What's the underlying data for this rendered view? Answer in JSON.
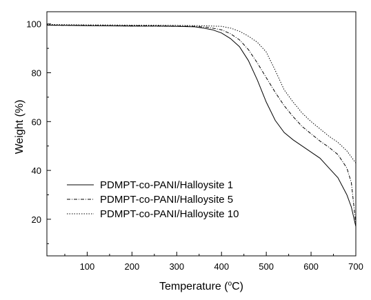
{
  "chart_data": {
    "type": "line",
    "title": "",
    "xlabel": "Temperature (",
    "xlabel_sup": "o",
    "xlabel_unit": "C)",
    "ylabel": "Weight (%)",
    "xlim": [
      10,
      700
    ],
    "ylim": [
      5,
      105
    ],
    "x_ticks": [
      100,
      200,
      300,
      400,
      500,
      600,
      700
    ],
    "x_tick_labels": [
      "100",
      "200",
      "300",
      "400",
      "500",
      "600",
      "700"
    ],
    "y_ticks": [
      20,
      40,
      60,
      80,
      100
    ],
    "y_tick_labels": [
      "20",
      "40",
      "60",
      "80",
      "100"
    ],
    "grid": false,
    "legend_position": "bottom-left",
    "series": [
      {
        "name": "PDMPT-co-PANI/Halloysite 1",
        "line_style": "solid",
        "x": [
          10,
          50,
          100,
          150,
          200,
          250,
          300,
          340,
          360,
          380,
          400,
          420,
          440,
          460,
          480,
          500,
          520,
          540,
          560,
          580,
          600,
          620,
          640,
          660,
          680,
          690,
          700
        ],
        "y": [
          99.5,
          99.4,
          99.3,
          99.2,
          99.1,
          99.1,
          99.0,
          98.8,
          98.3,
          97.6,
          96.3,
          94.0,
          90.7,
          85.0,
          77.0,
          68.0,
          60.5,
          55.5,
          52.5,
          50.0,
          47.5,
          45.0,
          41.0,
          37.0,
          30.0,
          25.0,
          17.0
        ]
      },
      {
        "name": "PDMPT-co-PANI/Halloysite 5",
        "line_style": "dash-dot",
        "x": [
          10,
          50,
          100,
          150,
          200,
          250,
          300,
          340,
          370,
          400,
          420,
          440,
          460,
          480,
          500,
          520,
          540,
          560,
          580,
          600,
          620,
          640,
          660,
          680,
          690,
          700
        ],
        "y": [
          99.5,
          99.4,
          99.4,
          99.3,
          99.3,
          99.2,
          99.1,
          99.0,
          98.6,
          97.6,
          96.0,
          93.5,
          89.5,
          84.0,
          78.0,
          72.0,
          66.5,
          62.0,
          58.0,
          55.0,
          52.0,
          49.5,
          46.5,
          41.0,
          35.0,
          18.0
        ]
      },
      {
        "name": "PDMPT-co-PANI/Halloysite 10",
        "line_style": "dotted",
        "x": [
          10,
          50,
          100,
          150,
          200,
          250,
          300,
          350,
          400,
          420,
          440,
          460,
          480,
          500,
          520,
          540,
          560,
          580,
          600,
          620,
          640,
          660,
          680,
          700
        ],
        "y": [
          99.8,
          99.7,
          99.6,
          99.6,
          99.5,
          99.5,
          99.4,
          99.3,
          99.0,
          98.3,
          97.0,
          95.0,
          92.5,
          88.5,
          81.0,
          73.0,
          68.0,
          63.5,
          60.0,
          57.0,
          54.0,
          51.5,
          48.0,
          43.0
        ]
      }
    ]
  }
}
